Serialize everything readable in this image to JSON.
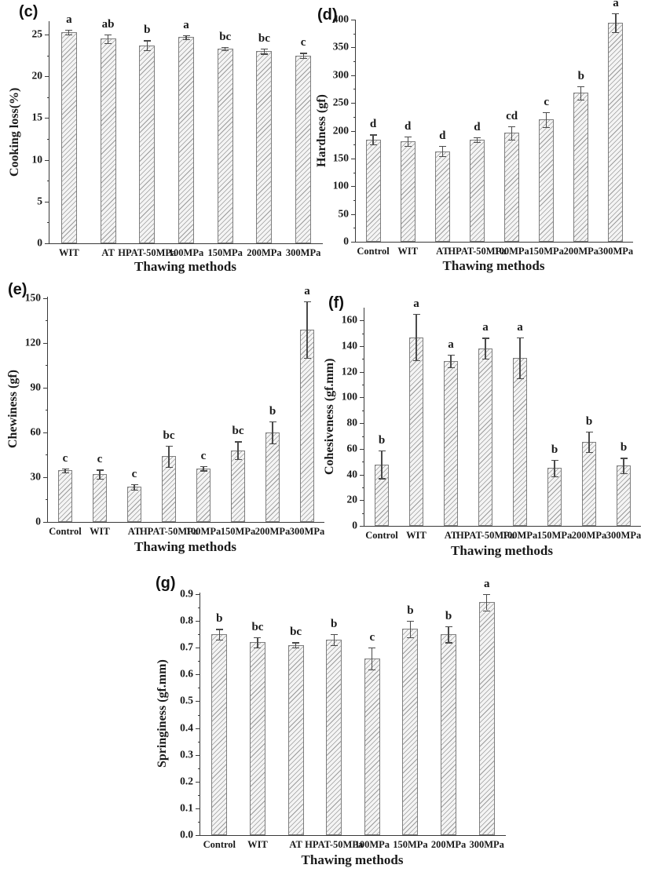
{
  "page": {
    "background": "#ffffff"
  },
  "style": {
    "axis_color": "#3a3a3a",
    "text_color": "#1a1a1a",
    "bar_fill": "#f4f4f4",
    "bar_hatch": "#9a9a9a",
    "bar_border": "#7e7e7e",
    "error_bar_color": "#4a4a4a"
  },
  "chart_data": [
    {
      "panel_label": "(c)",
      "type": "bar",
      "title": "",
      "ylabel": "Cooking loss(%)",
      "xlabel": "Thawing methods",
      "ylim": [
        0,
        26.6
      ],
      "grid": false,
      "legend": null,
      "ytick_values": [
        0,
        5,
        10,
        15,
        20,
        25
      ],
      "ytick_labels": [
        "0",
        "5",
        "10",
        "15",
        "20",
        "25"
      ],
      "categories": [
        "WIT",
        "AT",
        "HPAT-50MPa",
        "100MPa",
        "150MPa",
        "200MPa",
        "300MPa"
      ],
      "values": [
        25.3,
        24.5,
        23.7,
        24.7,
        23.3,
        23.0,
        22.5
      ],
      "errors": [
        0.3,
        0.5,
        0.6,
        0.25,
        0.2,
        0.3,
        0.3
      ],
      "sig_letters": [
        "a",
        "ab",
        "b",
        "a",
        "bc",
        "bc",
        "c"
      ]
    },
    {
      "panel_label": "(d)",
      "type": "bar",
      "title": "",
      "ylabel": "Hardness (gf)",
      "xlabel": "Thawing methods",
      "ylim": [
        0,
        400
      ],
      "grid": false,
      "legend": null,
      "ytick_values": [
        0,
        50,
        100,
        150,
        200,
        250,
        300,
        350,
        400
      ],
      "ytick_labels": [
        "0",
        "50",
        "100",
        "150",
        "200",
        "250",
        "300",
        "350",
        "400"
      ],
      "categories": [
        "Control",
        "WIT",
        "AT",
        "HPAT-50MPa",
        "100MPa",
        "150MPa",
        "200MPa",
        "300MPa"
      ],
      "values": [
        184,
        181,
        163,
        184,
        196,
        220,
        268,
        395
      ],
      "errors": [
        9,
        9,
        9,
        4,
        12,
        13,
        12,
        17
      ],
      "sig_letters": [
        "d",
        "d",
        "d",
        "d",
        "cd",
        "c",
        "b",
        "a"
      ]
    },
    {
      "panel_label": "(e)",
      "type": "bar",
      "title": "",
      "ylabel": "Chewiness (gf)",
      "xlabel": "Thawing methods",
      "ylim": [
        0,
        151
      ],
      "grid": false,
      "legend": null,
      "ytick_values": [
        0,
        30,
        60,
        90,
        120,
        150
      ],
      "ytick_labels": [
        "0",
        "30",
        "60",
        "90",
        "120",
        "150"
      ],
      "categories": [
        "Control",
        "WIT",
        "AT",
        "HPAT-50MPa",
        "100MPa",
        "150MPa",
        "200MPa",
        "300MPa"
      ],
      "values": [
        34.5,
        32,
        23.5,
        44,
        36,
        48,
        60,
        129
      ],
      "errors": [
        1.5,
        3,
        2,
        7,
        1.5,
        6,
        7.5,
        19
      ],
      "sig_letters": [
        "c",
        "c",
        "c",
        "bc",
        "c",
        "bc",
        "b",
        "a"
      ]
    },
    {
      "panel_label": "(f)",
      "type": "bar",
      "title": "",
      "ylabel": "Cohesiveness (gf.mm)",
      "xlabel": "Thawing methods",
      "ylim": [
        0,
        170
      ],
      "grid": false,
      "legend": null,
      "ytick_values": [
        0,
        20,
        40,
        60,
        80,
        100,
        120,
        140,
        160
      ],
      "ytick_labels": [
        "0",
        "20",
        "40",
        "60",
        "80",
        "100",
        "120",
        "140",
        "160"
      ],
      "categories": [
        "Control",
        "WIT",
        "AT",
        "HPAT-50MPa",
        "100MPa",
        "150MPa",
        "200MPa",
        "300MPa"
      ],
      "values": [
        48,
        147,
        128.5,
        138.5,
        131,
        45,
        65.5,
        47
      ],
      "errors": [
        11,
        18,
        5,
        8,
        16,
        6.5,
        8,
        6
      ],
      "sig_letters": [
        "b",
        "a",
        "a",
        "a",
        "a",
        "b",
        "b",
        "b"
      ]
    },
    {
      "panel_label": "(g)",
      "type": "bar",
      "title": "",
      "ylabel": "Springiness (gf.mm)",
      "xlabel": "Thawing methods",
      "ylim": [
        0,
        0.906
      ],
      "grid": false,
      "legend": null,
      "ytick_values": [
        0,
        0.1,
        0.2,
        0.3,
        0.4,
        0.5,
        0.6,
        0.7,
        0.8,
        0.9
      ],
      "ytick_labels": [
        "0.0",
        "0.1",
        "0.2",
        "0.3",
        "0.4",
        "0.5",
        "0.6",
        "0.7",
        "0.8",
        "0.9"
      ],
      "categories": [
        "Control",
        "WIT",
        "AT",
        "HPAT-50MPa",
        "100MPa",
        "150MPa",
        "200MPa",
        "300MPa"
      ],
      "values": [
        0.75,
        0.72,
        0.71,
        0.73,
        0.66,
        0.77,
        0.75,
        0.87
      ],
      "errors": [
        0.02,
        0.02,
        0.01,
        0.02,
        0.04,
        0.03,
        0.03,
        0.03
      ],
      "sig_letters": [
        "b",
        "bc",
        "bc",
        "b",
        "c",
        "b",
        "b",
        "a"
      ]
    }
  ]
}
